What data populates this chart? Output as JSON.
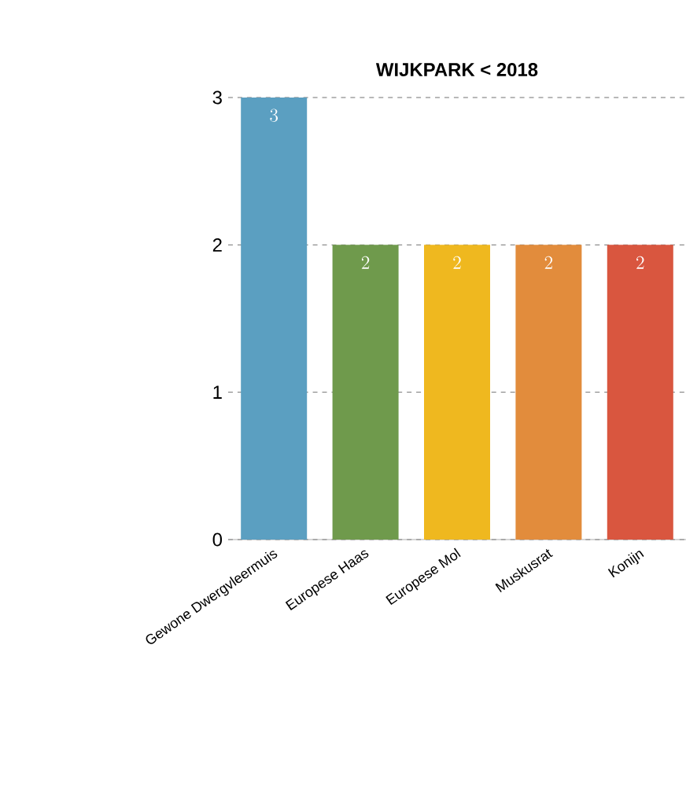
{
  "chart_data": {
    "type": "bar",
    "title": "WIJKPARK < 2018",
    "categories": [
      "Gewone Dwergvleermuis",
      "Europese Haas",
      "Europese Mol",
      "Muskusrat",
      "Konijn"
    ],
    "values": [
      3,
      2,
      2,
      2,
      2
    ],
    "colors": [
      "#5b9fc1",
      "#6f9a4c",
      "#efb81f",
      "#e28c3c",
      "#d9563f"
    ],
    "ylim": [
      0,
      3
    ],
    "yticks": [
      0,
      1,
      2,
      3
    ],
    "grid": "y",
    "data_labels": true
  }
}
